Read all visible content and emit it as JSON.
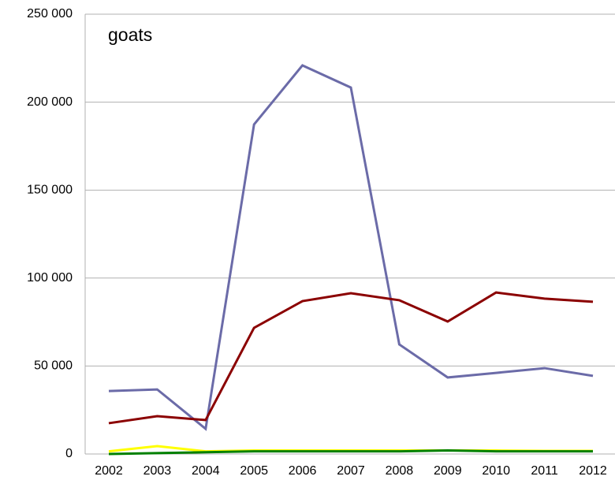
{
  "chart_data": {
    "type": "line",
    "annotation": "goats",
    "categories": [
      "2002",
      "2003",
      "2004",
      "2005",
      "2006",
      "2007",
      "2008",
      "2009",
      "2010",
      "2011",
      "2012"
    ],
    "series": [
      {
        "color": "#ffff00",
        "values": [
          1500,
          4500,
          1500,
          2000,
          2000,
          2000,
          2000,
          2000,
          2000,
          1800,
          1800
        ]
      },
      {
        "color": "#6b6ba8",
        "values": [
          35800,
          36700,
          14300,
          187300,
          220900,
          208300,
          62300,
          43500,
          46100,
          48800,
          44400
        ]
      },
      {
        "color": "#8b0000",
        "values": [
          17500,
          21500,
          19300,
          71700,
          86900,
          91400,
          87400,
          75300,
          91800,
          88300,
          86500
        ]
      },
      {
        "color": "#008000",
        "values": [
          0,
          500,
          1000,
          1500,
          1500,
          1500,
          1500,
          2000,
          1500,
          1500,
          1500
        ]
      }
    ],
    "ylim": [
      0,
      250000
    ],
    "yticks": [
      {
        "value": 0,
        "label": "0"
      },
      {
        "value": 50000,
        "label": "50 000"
      },
      {
        "value": 100000,
        "label": "100 000"
      },
      {
        "value": 150000,
        "label": "150 000"
      },
      {
        "value": 200000,
        "label": "200 000"
      },
      {
        "value": 250000,
        "label": "250 000"
      }
    ],
    "grid": true
  }
}
